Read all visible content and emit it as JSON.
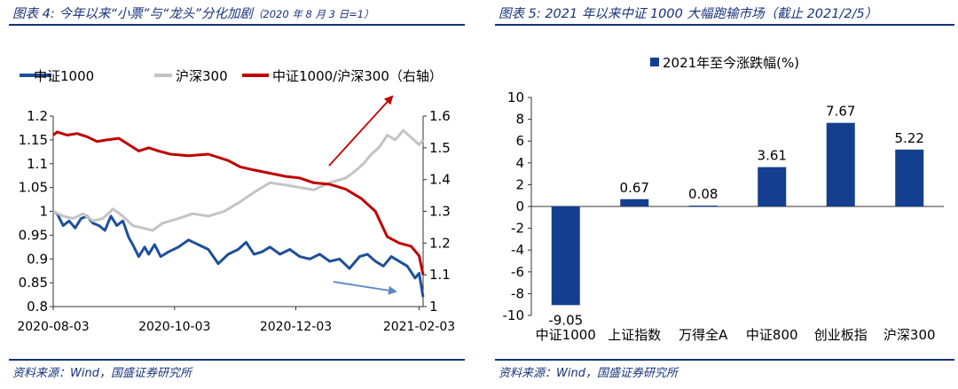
{
  "left_panel": {
    "title": "图表 4:  今年以来“小票”与“龙头”分化加剧",
    "title_note": "（2020 年 8 月 3 日=1）",
    "source": "资料来源：Wind，国盛证券研究所"
  },
  "right_panel": {
    "title": "图表 5:  2021 年以来中证 1000 大幅跑输市场（截止 2021/2/5）",
    "source": "资料来源：Wind，国盛证券研究所"
  },
  "colors": {
    "zz1000": "#1f4e9b",
    "hs300": "#c4c4c4",
    "ratio": "#c00000",
    "bar": "#143f8f",
    "red_arrow": "#c00000",
    "blue_arrow": "#5a86c2",
    "title": "#17337a"
  },
  "chart_data": [
    {
      "type": "line",
      "title": "",
      "legend_position": "top",
      "x_ticks": [
        "2020-08-03",
        "2020-10-03",
        "2020-12-03",
        "2021-02-03"
      ],
      "x_start": "2020-08-03",
      "x_end": "2021-02-05",
      "ylim_left": [
        0.8,
        1.2
      ],
      "yticks_left": [
        "0.8",
        "0.85",
        "0.9",
        "0.95",
        "1",
        "1.05",
        "1.1",
        "1.15",
        "1.2"
      ],
      "ylim_right": [
        1,
        1.6
      ],
      "yticks_right": [
        "1",
        "1.1",
        "1.2",
        "1.3",
        "1.4",
        "1.5",
        "1.6"
      ],
      "grid": false,
      "series": [
        {
          "name": "中证1000",
          "axis": "left",
          "color": "#1f4e9b",
          "x": [
            "2020-08-03",
            "2020-08-05",
            "2020-08-08",
            "2020-08-11",
            "2020-08-14",
            "2020-08-17",
            "2020-08-20",
            "2020-08-23",
            "2020-08-26",
            "2020-08-29",
            "2020-09-01",
            "2020-09-04",
            "2020-09-07",
            "2020-09-10",
            "2020-09-12",
            "2020-09-15",
            "2020-09-18",
            "2020-09-20",
            "2020-09-23",
            "2020-09-26",
            "2020-09-30",
            "2020-10-05",
            "2020-10-10",
            "2020-10-15",
            "2020-10-20",
            "2020-10-25",
            "2020-10-30",
            "2020-11-04",
            "2020-11-08",
            "2020-11-12",
            "2020-11-16",
            "2020-11-20",
            "2020-11-25",
            "2020-11-30",
            "2020-12-05",
            "2020-12-10",
            "2020-12-15",
            "2020-12-20",
            "2020-12-25",
            "2020-12-30",
            "2021-01-04",
            "2021-01-08",
            "2021-01-12",
            "2021-01-16",
            "2021-01-20",
            "2021-01-24",
            "2021-01-28",
            "2021-02-01",
            "2021-02-03",
            "2021-02-05"
          ],
          "values": [
            1.0,
            0.995,
            0.97,
            0.98,
            0.965,
            0.985,
            0.99,
            0.975,
            0.97,
            0.96,
            0.99,
            0.97,
            0.98,
            0.945,
            0.93,
            0.905,
            0.925,
            0.91,
            0.93,
            0.905,
            0.915,
            0.925,
            0.94,
            0.93,
            0.92,
            0.89,
            0.91,
            0.92,
            0.935,
            0.91,
            0.915,
            0.925,
            0.91,
            0.92,
            0.905,
            0.9,
            0.91,
            0.895,
            0.9,
            0.88,
            0.905,
            0.91,
            0.895,
            0.885,
            0.905,
            0.895,
            0.885,
            0.86,
            0.87,
            0.82
          ]
        },
        {
          "name": "沪深300",
          "axis": "left",
          "color": "#c4c4c4",
          "x": [
            "2020-08-03",
            "2020-08-08",
            "2020-08-13",
            "2020-08-18",
            "2020-08-23",
            "2020-08-28",
            "2020-09-02",
            "2020-09-07",
            "2020-09-12",
            "2020-09-17",
            "2020-09-22",
            "2020-09-27",
            "2020-10-05",
            "2020-10-12",
            "2020-10-20",
            "2020-10-28",
            "2020-11-05",
            "2020-11-12",
            "2020-11-20",
            "2020-11-28",
            "2020-12-05",
            "2020-12-12",
            "2020-12-20",
            "2020-12-28",
            "2021-01-02",
            "2021-01-06",
            "2021-01-10",
            "2021-01-14",
            "2021-01-18",
            "2021-01-22",
            "2021-01-26",
            "2021-01-30",
            "2021-02-03",
            "2021-02-05"
          ],
          "values": [
            1.0,
            0.99,
            0.985,
            0.995,
            0.98,
            0.985,
            1.005,
            0.99,
            0.97,
            0.965,
            0.96,
            0.975,
            0.985,
            0.995,
            0.99,
            1.0,
            1.02,
            1.04,
            1.06,
            1.055,
            1.05,
            1.045,
            1.06,
            1.07,
            1.085,
            1.1,
            1.12,
            1.135,
            1.16,
            1.15,
            1.17,
            1.155,
            1.14,
            1.15
          ]
        },
        {
          "name": "中证1000/沪深300（右轴）",
          "axis": "right",
          "color": "#c00000",
          "x": [
            "2020-08-03",
            "2020-08-05",
            "2020-08-10",
            "2020-08-15",
            "2020-08-20",
            "2020-08-25",
            "2020-08-30",
            "2020-09-05",
            "2020-09-10",
            "2020-09-15",
            "2020-09-20",
            "2020-09-25",
            "2020-10-01",
            "2020-10-10",
            "2020-10-20",
            "2020-10-30",
            "2020-11-05",
            "2020-11-12",
            "2020-11-20",
            "2020-11-28",
            "2020-12-05",
            "2020-12-12",
            "2020-12-20",
            "2020-12-28",
            "2021-01-05",
            "2021-01-12",
            "2021-01-18",
            "2021-01-24",
            "2021-01-30",
            "2021-02-03",
            "2021-02-05"
          ],
          "values": [
            1.54,
            1.55,
            1.54,
            1.545,
            1.535,
            1.52,
            1.525,
            1.53,
            1.51,
            1.49,
            1.5,
            1.49,
            1.48,
            1.475,
            1.48,
            1.46,
            1.44,
            1.43,
            1.42,
            1.41,
            1.405,
            1.39,
            1.385,
            1.37,
            1.34,
            1.3,
            1.22,
            1.2,
            1.19,
            1.16,
            1.1
          ]
        }
      ]
    },
    {
      "type": "bar",
      "title": "2021年至今涨跌幅(%)",
      "legend_position": "top",
      "categories": [
        "中证1000",
        "上证指数",
        "万得全A",
        "中证800",
        "创业板指",
        "沪深300"
      ],
      "values": [
        -9.05,
        0.67,
        0.08,
        3.61,
        7.67,
        5.22
      ],
      "value_labels": [
        "-9.05",
        "0.67",
        "0.08",
        "3.61",
        "7.67",
        "5.22"
      ],
      "ylim": [
        -10,
        10
      ],
      "yticks": [
        "-10",
        "-8",
        "-6",
        "-4",
        "-2",
        "0",
        "2",
        "4",
        "6",
        "8",
        "10"
      ],
      "grid": false
    }
  ]
}
